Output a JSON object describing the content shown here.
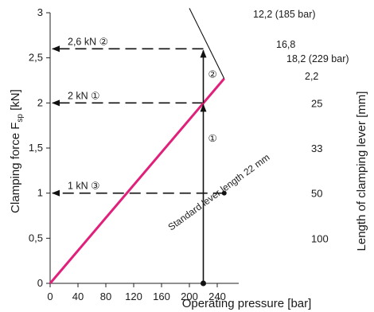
{
  "chart_data": {
    "type": "line",
    "ylabel": "Clamping force F",
    "ylabel_sub": "sp",
    "ylabel_unit": " [kN]",
    "xlabel": "Operating pressure [bar]",
    "y2label": "Length of clamping lever [mm]",
    "xlim": [
      0,
      250
    ],
    "ylim": [
      0,
      3
    ],
    "x_ticks": [
      0,
      40,
      80,
      120,
      160,
      200,
      240
    ],
    "x_tick_labels": [
      "0",
      "40",
      "80",
      "120",
      "160",
      "200",
      "240"
    ],
    "y_ticks": [
      0,
      0.5,
      1,
      1.5,
      2,
      2.5,
      3
    ],
    "y_tick_labels": [
      "0",
      "0,5",
      "1",
      "1,5",
      "2",
      "2,5",
      "3"
    ],
    "series": [
      {
        "name": "Standard lever length 22 mm",
        "color": "#e0207a",
        "x": [
          0,
          250
        ],
        "y": [
          0,
          2.27
        ]
      }
    ],
    "limit_curve": {
      "x": [
        200,
        250
      ],
      "y": [
        3.05,
        2.27
      ]
    },
    "right_axis_markers": [
      {
        "label": "25",
        "y": 2
      },
      {
        "label": "33",
        "y": 1.5
      },
      {
        "label": "50",
        "y": 1
      },
      {
        "label": "100",
        "y": 0.5
      }
    ],
    "dashed_levels": [
      {
        "label": "2,6 kN ②",
        "y": 2.6,
        "x_end": 220
      },
      {
        "label": "2 kN ①",
        "y": 2,
        "x_end": 220
      },
      {
        "label": "1 kN ③",
        "y": 1,
        "x_end": 250
      }
    ],
    "vertical_arrows": [
      {
        "label": "①",
        "x": 220,
        "y_from": 0,
        "y_to": 2
      },
      {
        "label": "②",
        "x": 220,
        "y_from": 2,
        "y_to": 2.6
      }
    ],
    "annotations": {
      "top": "12,2 (185 bar)",
      "upper_mid": "16,8",
      "right": "18,2 (229 bar)",
      "corner": "2,2",
      "line_label": "Standard lever length 22 mm"
    }
  }
}
